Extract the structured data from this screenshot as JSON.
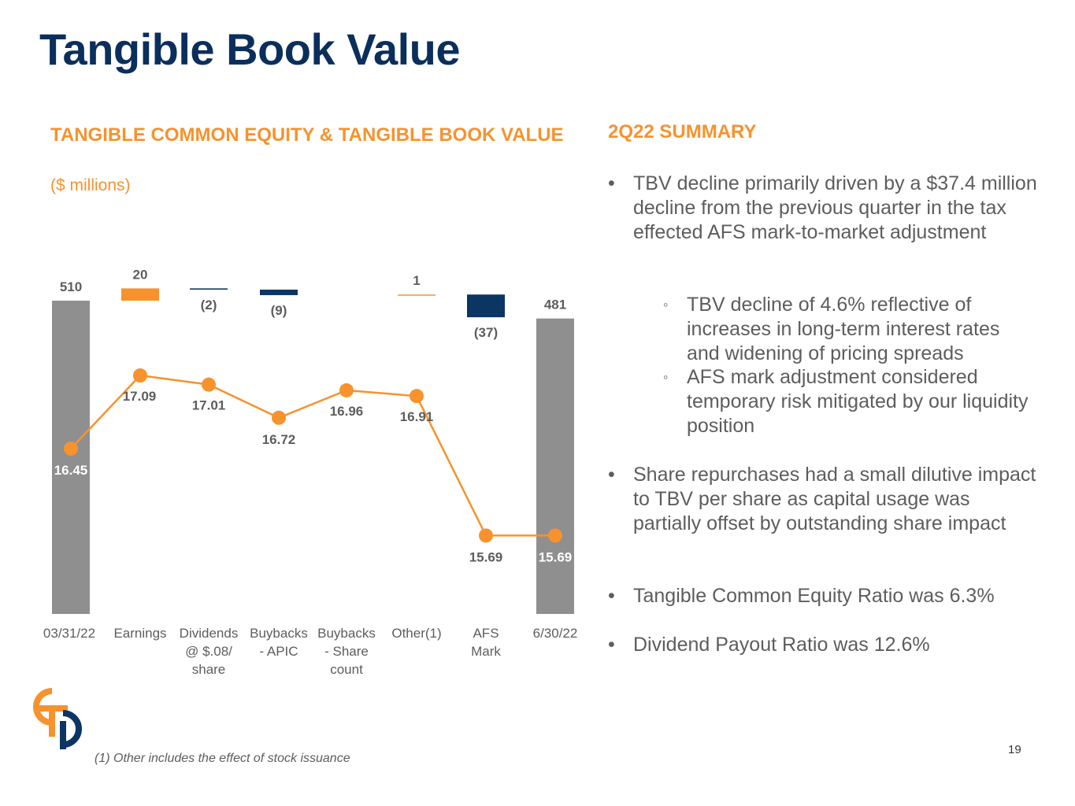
{
  "title": "Tangible Book Value",
  "chart_heading": "TANGIBLE COMMON EQUITY & TANGIBLE BOOK VALUE",
  "chart_subtitle": "($ millions)",
  "summary": {
    "heading": "2Q22 SUMMARY",
    "bullets": [
      {
        "text": "TBV decline primarily driven by a $37.4 million decline from the previous quarter in the tax effected AFS mark-to-market adjustment",
        "sub": [
          "TBV decline of 4.6% reflective of increases in long-term interest rates and widening of pricing spreads",
          "AFS mark adjustment considered temporary risk mitigated by our liquidity position"
        ]
      },
      {
        "text": "Share repurchases had a small dilutive impact to TBV per share as capital usage was partially offset by outstanding share impact"
      },
      {
        "text": "Tangible Common Equity Ratio was 6.3%"
      },
      {
        "text": "Dividend Payout Ratio was 12.6%"
      }
    ]
  },
  "footnote": "(1) Other includes the effect of stock issuance",
  "page_number": "19",
  "colors": {
    "title": "#0b2f5c",
    "accent": "#f7922d",
    "navy": "#0b3563",
    "gray": "#8f8f8f",
    "text": "#5d5d5d"
  },
  "chart_data": {
    "type": "bar",
    "subtype": "waterfall-with-line",
    "categories": [
      "03/31/22",
      "Earnings",
      "Dividends @ $.08/ share",
      "Buybacks - APIC",
      "Buybacks - Share count",
      "Other(1)",
      "AFS Mark",
      "6/30/22"
    ],
    "category_lines": [
      [
        "03/31/22"
      ],
      [
        "Earnings"
      ],
      [
        "Dividends",
        "@ $.08/",
        "share"
      ],
      [
        "Buybacks",
        "- APIC"
      ],
      [
        "Buybacks",
        "- Share",
        "count"
      ],
      [
        "Other(1)"
      ],
      [
        "AFS",
        "Mark"
      ],
      [
        "6/30/22"
      ]
    ],
    "bars": [
      {
        "kind": "total",
        "value": 510,
        "label": "510"
      },
      {
        "kind": "increase",
        "value": 20,
        "label": "20"
      },
      {
        "kind": "decrease",
        "value": -2,
        "label": "(2)"
      },
      {
        "kind": "decrease",
        "value": -9,
        "label": "(9)"
      },
      {
        "kind": "none",
        "value": 0,
        "label": ""
      },
      {
        "kind": "increase",
        "value": 1,
        "label": "1"
      },
      {
        "kind": "decrease",
        "value": -37,
        "label": "(37)"
      },
      {
        "kind": "total",
        "value": 481,
        "label": "481"
      }
    ],
    "series": [
      {
        "values": [
          16.45,
          17.09,
          17.01,
          16.72,
          16.96,
          16.91,
          15.69,
          15.69
        ],
        "labels": [
          "16.45",
          "17.09",
          "17.01",
          "16.72",
          "16.96",
          "16.91",
          "15.69",
          "15.69"
        ]
      }
    ]
  }
}
